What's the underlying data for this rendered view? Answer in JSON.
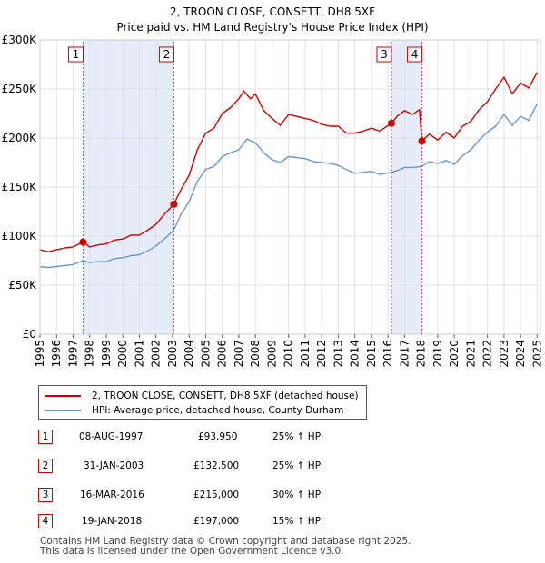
{
  "chart_data": {
    "type": "line",
    "title": "2, TROON CLOSE, CONSETT, DH8 5XF",
    "subtitle": "Price paid vs. HM Land Registry's House Price Index (HPI)",
    "xlabel": "",
    "ylabel": "",
    "xlim": [
      1995,
      2025.2
    ],
    "ylim": [
      0,
      300000
    ],
    "y_ticks": [
      0,
      50000,
      100000,
      150000,
      200000,
      250000,
      300000
    ],
    "y_tick_labels": [
      "£0",
      "£50K",
      "£100K",
      "£150K",
      "£200K",
      "£250K",
      "£300K"
    ],
    "x_ticks": [
      1995,
      1996,
      1997,
      1998,
      1999,
      2000,
      2001,
      2002,
      2003,
      2004,
      2005,
      2006,
      2007,
      2008,
      2009,
      2010,
      2011,
      2012,
      2013,
      2014,
      2015,
      2016,
      2017,
      2018,
      2019,
      2020,
      2021,
      2022,
      2023,
      2024,
      2025
    ],
    "x_tick_labels": [
      "1995",
      "1996",
      "1997",
      "1998",
      "1999",
      "2000",
      "2001",
      "2002",
      "2003",
      "2004",
      "2005",
      "2006",
      "2007",
      "2008",
      "2009",
      "2010",
      "2011",
      "2012",
      "2013",
      "2014",
      "2015",
      "2016",
      "2017",
      "2018",
      "2019",
      "2020",
      "2021",
      "2022",
      "2023",
      "2024",
      "2025"
    ],
    "grid": true,
    "shaded_periods": [
      [
        1997.6,
        2003.08
      ],
      [
        2016.21,
        2018.05
      ]
    ],
    "series": [
      {
        "name": "2, TROON CLOSE, CONSETT, DH8 5XF (detached house)",
        "color": "#cc0000",
        "x": [
          1995.0,
          1995.5,
          1996.0,
          1996.5,
          1997.0,
          1997.6,
          1998.0,
          1998.5,
          1999.0,
          1999.5,
          2000.0,
          2000.5,
          2001.0,
          2001.5,
          2002.0,
          2002.5,
          2003.08,
          2003.5,
          2004.0,
          2004.5,
          2005.0,
          2005.5,
          2006.0,
          2006.5,
          2007.0,
          2007.3,
          2007.7,
          2008.0,
          2008.5,
          2009.0,
          2009.5,
          2010.0,
          2010.5,
          2011.0,
          2011.5,
          2012.0,
          2012.5,
          2013.0,
          2013.5,
          2014.0,
          2014.5,
          2015.0,
          2015.5,
          2016.21,
          2016.6,
          2017.0,
          2017.5,
          2017.9,
          2018.05,
          2018.5,
          2019.0,
          2019.5,
          2020.0,
          2020.5,
          2021.0,
          2021.5,
          2022.0,
          2022.5,
          2023.0,
          2023.5,
          2024.0,
          2024.5,
          2025.0
        ],
        "values": [
          86000,
          84000,
          86000,
          88000,
          89000,
          93950,
          89000,
          91000,
          92000,
          96000,
          97000,
          101000,
          101000,
          106000,
          112000,
          122000,
          132500,
          147000,
          162000,
          188000,
          205000,
          210000,
          225000,
          231000,
          240000,
          248000,
          240000,
          245000,
          228000,
          220000,
          213000,
          224000,
          222000,
          220000,
          218000,
          214000,
          212000,
          212000,
          205000,
          205000,
          207000,
          210000,
          207000,
          215000,
          223000,
          228000,
          224000,
          229000,
          197000,
          204000,
          198000,
          206000,
          200000,
          212000,
          217000,
          229000,
          237000,
          250000,
          262000,
          245000,
          256000,
          251000,
          267000
        ]
      },
      {
        "name": "HPI: Average price, detached house, County Durham",
        "color": "#6b96cc",
        "x": [
          1995.0,
          1995.5,
          1996.0,
          1996.5,
          1997.0,
          1997.6,
          1998.0,
          1998.5,
          1999.0,
          1999.5,
          2000.0,
          2000.5,
          2001.0,
          2001.5,
          2002.0,
          2002.5,
          2003.08,
          2003.5,
          2004.0,
          2004.5,
          2005.0,
          2005.5,
          2006.0,
          2006.5,
          2007.0,
          2007.5,
          2008.0,
          2008.5,
          2009.0,
          2009.5,
          2010.0,
          2010.5,
          2011.0,
          2011.5,
          2012.0,
          2012.5,
          2013.0,
          2013.5,
          2014.0,
          2014.5,
          2015.0,
          2015.5,
          2016.21,
          2016.6,
          2017.0,
          2017.5,
          2018.05,
          2018.5,
          2019.0,
          2019.5,
          2020.0,
          2020.5,
          2021.0,
          2021.5,
          2022.0,
          2022.5,
          2023.0,
          2023.5,
          2024.0,
          2024.5,
          2025.0
        ],
        "values": [
          69000,
          68000,
          69000,
          70000,
          71000,
          75000,
          73000,
          74000,
          74000,
          77000,
          78000,
          80000,
          81000,
          85000,
          90000,
          97000,
          106000,
          122000,
          135000,
          156000,
          168000,
          171000,
          181000,
          185000,
          188000,
          199000,
          195000,
          185000,
          178000,
          175000,
          181000,
          180000,
          179000,
          176000,
          175000,
          174000,
          172000,
          168000,
          164000,
          165000,
          166000,
          163000,
          165000,
          167000,
          170000,
          170000,
          171000,
          176000,
          174000,
          177000,
          173000,
          182000,
          188000,
          198000,
          206000,
          212000,
          224000,
          213000,
          222000,
          218000,
          235000
        ]
      }
    ],
    "markers": [
      {
        "label": "1",
        "x": 1997.6,
        "y": 93950
      },
      {
        "label": "2",
        "x": 2003.08,
        "y": 132500
      },
      {
        "label": "3",
        "x": 2016.21,
        "y": 215000
      },
      {
        "label": "4",
        "x": 2018.05,
        "y": 197000
      }
    ]
  },
  "legend": {
    "items": [
      {
        "label": "2, TROON CLOSE, CONSETT, DH8 5XF (detached house)",
        "color": "#cc0000"
      },
      {
        "label": "HPI: Average price, detached house, County Durham",
        "color": "#6b96cc"
      }
    ]
  },
  "transactions": [
    {
      "num": "1",
      "date": "08-AUG-1997",
      "price": "£93,950",
      "hpi": "25% ↑ HPI"
    },
    {
      "num": "2",
      "date": "31-JAN-2003",
      "price": "£132,500",
      "hpi": "25% ↑ HPI"
    },
    {
      "num": "3",
      "date": "16-MAR-2016",
      "price": "£215,000",
      "hpi": "30% ↑ HPI"
    },
    {
      "num": "4",
      "date": "19-JAN-2018",
      "price": "£197,000",
      "hpi": "15% ↑ HPI"
    }
  ],
  "footer": {
    "line1": "Contains HM Land Registry data © Crown copyright and database right 2025.",
    "line2": "This data is licensed under the Open Government Licence v3.0."
  }
}
